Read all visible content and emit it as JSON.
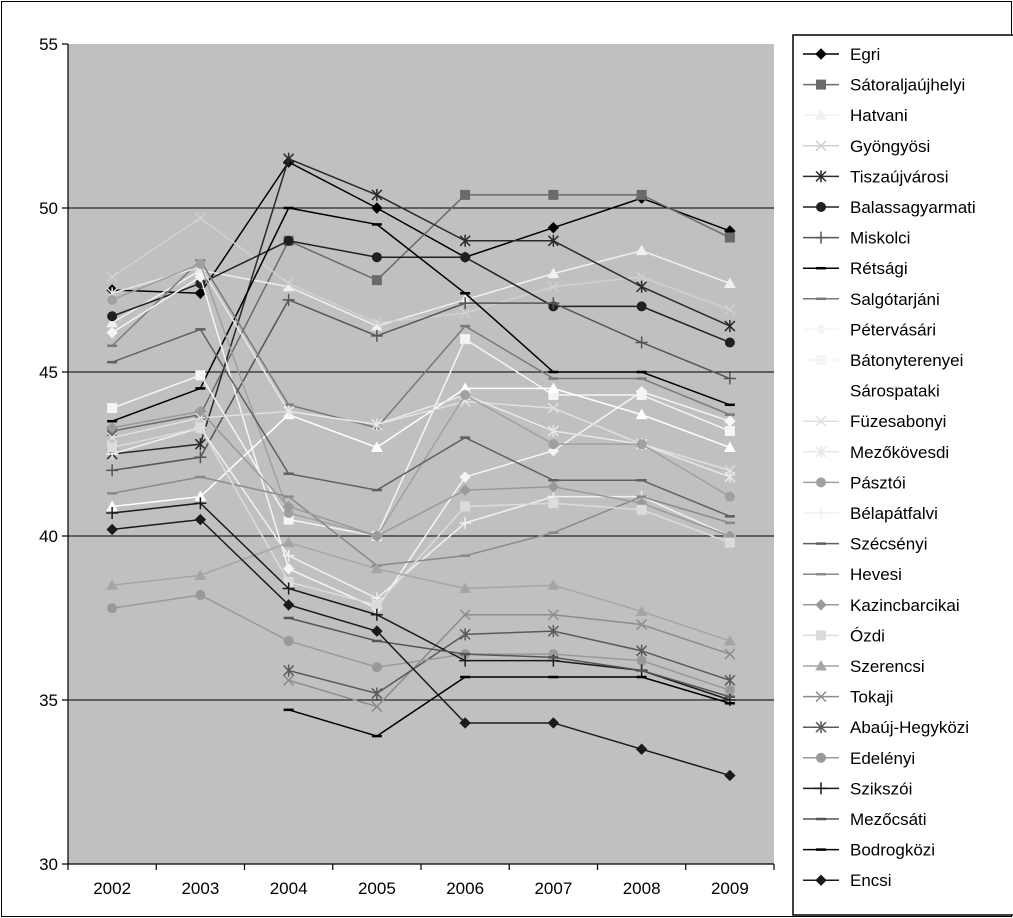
{
  "chart_data": {
    "type": "line",
    "title": "",
    "xlabel": "",
    "ylabel": "",
    "x": [
      "2002",
      "2003",
      "2004",
      "2005",
      "2006",
      "2007",
      "2008",
      "2009"
    ],
    "ylim": [
      30,
      55
    ],
    "yticks": [
      "30",
      "35",
      "40",
      "45",
      "50",
      "55"
    ],
    "grid": "horizontal major gridlines at 35, 40, 45, 50",
    "legend_position": "right",
    "plot_background": "#c0c0c0",
    "series": [
      {
        "name": "Egri",
        "marker": "diamond",
        "color": "#000000",
        "values": [
          47.5,
          47.4,
          51.4,
          50.0,
          48.5,
          49.4,
          50.3,
          49.3
        ]
      },
      {
        "name": "Sátoraljaújhelyi",
        "marker": "square",
        "color": "#6a6a6a",
        "values": [
          43.2,
          43.7,
          49.0,
          47.8,
          50.4,
          50.4,
          50.4,
          49.1
        ]
      },
      {
        "name": "Hatvani",
        "marker": "triangle",
        "color": "#f0f0f0",
        "values": [
          46.5,
          48.1,
          47.6,
          46.4,
          47.2,
          48.0,
          48.7,
          47.7
        ]
      },
      {
        "name": "Gyöngyösi",
        "marker": "x",
        "color": "#d0d0d0",
        "values": [
          47.9,
          49.7,
          47.7,
          46.5,
          46.8,
          47.6,
          47.9,
          46.9
        ]
      },
      {
        "name": "Tiszaújvárosi",
        "marker": "star",
        "color": "#2a2a2a",
        "values": [
          42.5,
          42.8,
          51.5,
          50.4,
          49.0,
          49.0,
          47.6,
          46.4
        ]
      },
      {
        "name": "Balassagyarmati",
        "marker": "circle",
        "color": "#202020",
        "values": [
          46.7,
          47.7,
          49.0,
          48.5,
          48.5,
          47.0,
          47.0,
          45.9
        ]
      },
      {
        "name": "Miskolci",
        "marker": "plus",
        "color": "#555555",
        "values": [
          42.0,
          42.4,
          47.2,
          46.1,
          47.1,
          47.1,
          45.9,
          44.8
        ]
      },
      {
        "name": "Rétsági",
        "marker": "dash",
        "color": "#000000",
        "values": [
          43.5,
          44.5,
          50.0,
          49.5,
          47.4,
          45.0,
          45.0,
          44.0
        ]
      },
      {
        "name": "Salgótarjáni",
        "marker": "dash",
        "color": "#7a7a7a",
        "values": [
          45.8,
          48.4,
          44.0,
          43.3,
          46.4,
          44.8,
          44.8,
          43.7
        ]
      },
      {
        "name": "Pétervásári",
        "marker": "diamond",
        "color": "#f5f5f5",
        "values": [
          46.2,
          47.9,
          39.0,
          37.8,
          41.8,
          42.6,
          44.4,
          43.5
        ]
      },
      {
        "name": "Bátonyterenyei",
        "marker": "square",
        "color": "#f5f5f5",
        "values": [
          43.9,
          44.9,
          40.5,
          40.0,
          46.0,
          44.3,
          44.3,
          43.2
        ]
      },
      {
        "name": "Sárospataki",
        "marker": "triangle",
        "color": "#ffffff",
        "values": [
          40.9,
          41.2,
          43.7,
          42.7,
          44.5,
          44.5,
          43.7,
          42.7
        ]
      },
      {
        "name": "Füzesabonyi",
        "marker": "x",
        "color": "#e0e0e0",
        "values": [
          43.0,
          43.6,
          43.8,
          43.4,
          44.1,
          43.9,
          42.8,
          42.0
        ]
      },
      {
        "name": "Mezőkövesdi",
        "marker": "star",
        "color": "#e8e8e8",
        "values": [
          47.4,
          48.2,
          43.8,
          43.4,
          44.3,
          43.2,
          42.8,
          41.8
        ]
      },
      {
        "name": "Pásztói",
        "marker": "circle",
        "color": "#a0a0a0",
        "values": [
          47.2,
          48.3,
          40.7,
          40.0,
          44.3,
          42.8,
          42.8,
          41.2
        ]
      },
      {
        "name": "Bélapátfalvi",
        "marker": "plus",
        "color": "#f0f0f0",
        "values": [
          42.5,
          43.3,
          39.4,
          38.1,
          40.4,
          41.2,
          41.2,
          40.0
        ]
      },
      {
        "name": "Szécsényi",
        "marker": "dash",
        "color": "#606060",
        "values": [
          45.3,
          46.3,
          41.9,
          41.4,
          43.0,
          41.7,
          41.7,
          40.6
        ]
      },
      {
        "name": "Hevesi",
        "marker": "dash",
        "color": "#8a8a8a",
        "values": [
          41.3,
          41.8,
          41.2,
          39.1,
          39.4,
          40.1,
          41.2,
          40.4
        ]
      },
      {
        "name": "Kazincbarcikai",
        "marker": "diamond",
        "color": "#9a9a9a",
        "values": [
          43.3,
          43.8,
          40.9,
          40.0,
          41.4,
          41.5,
          41.0,
          40.0
        ]
      },
      {
        "name": "Ózdi",
        "marker": "square",
        "color": "#dcdcdc",
        "values": [
          42.7,
          43.3,
          38.6,
          37.9,
          40.9,
          41.0,
          40.8,
          39.8
        ]
      },
      {
        "name": "Szerencsi",
        "marker": "triangle",
        "color": "#a5a5a5",
        "values": [
          38.5,
          38.8,
          39.8,
          39.0,
          38.4,
          38.5,
          37.7,
          36.8
        ]
      },
      {
        "name": "Tokaji",
        "marker": "x",
        "color": "#8c8c8c",
        "values": [
          null,
          null,
          35.6,
          34.8,
          37.6,
          37.6,
          37.3,
          36.4
        ]
      },
      {
        "name": "Abaúj-Hegyközi",
        "marker": "star",
        "color": "#5a5a5a",
        "values": [
          null,
          null,
          35.9,
          35.2,
          37.0,
          37.1,
          36.5,
          35.6
        ]
      },
      {
        "name": "Edelényi",
        "marker": "circle",
        "color": "#999999",
        "values": [
          37.8,
          38.2,
          36.8,
          36.0,
          36.4,
          36.4,
          36.2,
          35.3
        ]
      },
      {
        "name": "Szikszói",
        "marker": "plus",
        "color": "#1a1a1a",
        "values": [
          40.7,
          41.0,
          38.4,
          37.6,
          36.2,
          36.2,
          35.9,
          35.0
        ]
      },
      {
        "name": "Mezőcsáti",
        "marker": "dash",
        "color": "#555555",
        "values": [
          null,
          null,
          37.5,
          36.8,
          36.4,
          36.3,
          35.9,
          35.1
        ]
      },
      {
        "name": "Bodrogközi",
        "marker": "dash",
        "color": "#000000",
        "values": [
          null,
          null,
          34.7,
          33.9,
          35.7,
          35.7,
          35.7,
          34.9
        ]
      },
      {
        "name": "Encsi",
        "marker": "diamond",
        "color": "#1a1a1a",
        "values": [
          40.2,
          40.5,
          37.9,
          37.1,
          34.3,
          34.3,
          33.5,
          32.7
        ]
      }
    ]
  }
}
